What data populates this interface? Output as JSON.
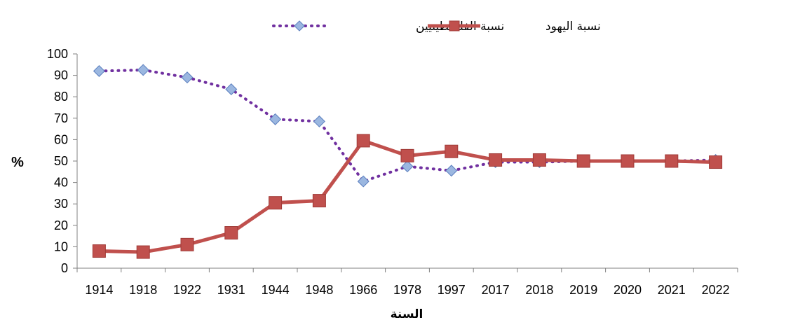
{
  "chart_data": {
    "type": "line",
    "title": "",
    "xlabel": "السنة",
    "ylabel": "%",
    "ylim": [
      0,
      100
    ],
    "yticks": [
      0,
      10,
      20,
      30,
      40,
      50,
      60,
      70,
      80,
      90,
      100
    ],
    "categories": [
      "1914",
      "1918",
      "1922",
      "1931",
      "1944",
      "1948",
      "1966",
      "1978",
      "1997",
      "2017",
      "2018",
      "2019",
      "2020",
      "2021",
      "2022"
    ],
    "grid": false,
    "legend_position": "top-center",
    "series": [
      {
        "name": "نسبة اليهود",
        "values": [
          8,
          7.5,
          11,
          16.5,
          30.5,
          31.5,
          59.5,
          52.5,
          54.5,
          50.5,
          50.5,
          50,
          50,
          50,
          49.5
        ],
        "color": "#C0504D",
        "style": "solid",
        "marker": "square"
      },
      {
        "name": "نسبة الفلسطينيين",
        "values": [
          92,
          92.5,
          89,
          83.5,
          69.5,
          68.5,
          40.5,
          47.5,
          45.5,
          49.5,
          49.5,
          50,
          50,
          50,
          50.5
        ],
        "color": "#7030A0",
        "marker_color": "#9BB7E0",
        "style": "dotted",
        "marker": "diamond"
      }
    ]
  }
}
